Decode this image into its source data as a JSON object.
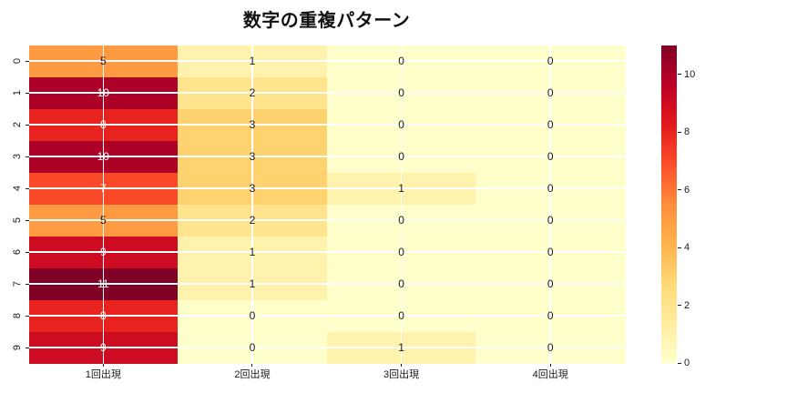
{
  "figure": {
    "background": "#ffffff",
    "title_color": "#111111",
    "tick_color": "#1a1a1a"
  },
  "chart_data": {
    "type": "heatmap",
    "title": "数字の重複パターン",
    "x_labels": [
      "1回出現",
      "2回出現",
      "3回出現",
      "4回出現"
    ],
    "y_labels": [
      "0",
      "1",
      "2",
      "3",
      "4",
      "5",
      "6",
      "7",
      "8",
      "9"
    ],
    "values": [
      [
        5,
        1,
        0,
        0
      ],
      [
        10,
        2,
        0,
        0
      ],
      [
        8,
        3,
        0,
        0
      ],
      [
        10,
        3,
        0,
        0
      ],
      [
        7,
        3,
        1,
        0
      ],
      [
        5,
        2,
        0,
        0
      ],
      [
        9,
        1,
        0,
        0
      ],
      [
        11,
        1,
        0,
        0
      ],
      [
        8,
        0,
        0,
        0
      ],
      [
        9,
        0,
        1,
        0
      ]
    ],
    "vmin": 0,
    "vmax": 11,
    "annotated": true,
    "grid": true,
    "grid_color": "#ffffff",
    "colormap_name": "YlOrRd",
    "colormap_anchors": [
      [
        0.0,
        "#ffffcc"
      ],
      [
        0.125,
        "#ffeda0"
      ],
      [
        0.25,
        "#fed976"
      ],
      [
        0.375,
        "#feb24c"
      ],
      [
        0.5,
        "#fd8d3c"
      ],
      [
        0.625,
        "#fc4e2a"
      ],
      [
        0.75,
        "#e31a1c"
      ],
      [
        0.875,
        "#bd0026"
      ],
      [
        1.0,
        "#800026"
      ]
    ],
    "annot_dark_text_color": "#1a1a1a",
    "annot_light_text_color": "#ffffff",
    "white_text_min_value": 6,
    "colorbar": {
      "position": "right",
      "ticks": [
        0,
        2,
        4,
        6,
        8,
        10
      ]
    }
  }
}
